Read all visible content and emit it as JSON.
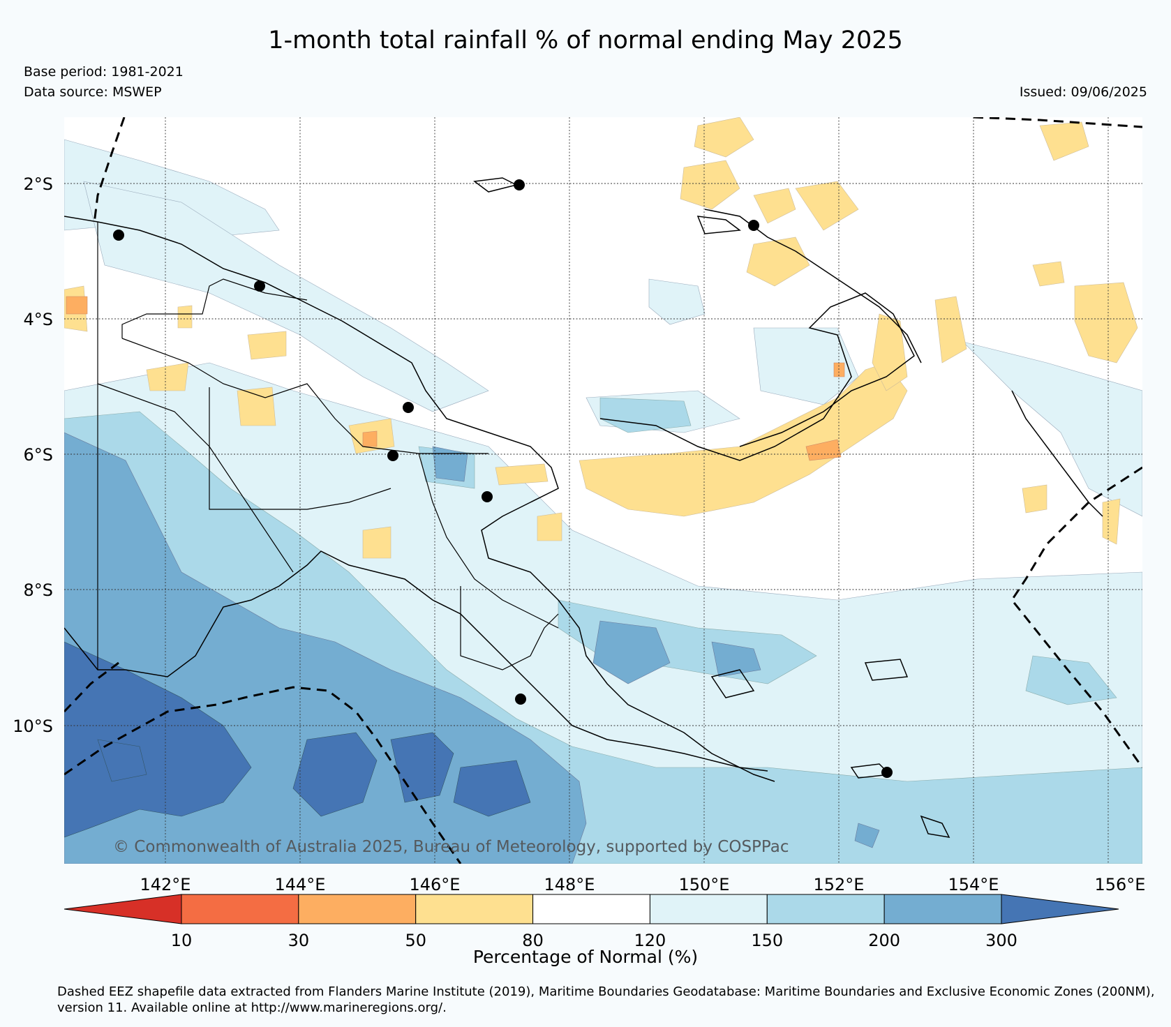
{
  "header": {
    "title": "1-month total rainfall % of normal ending May 2025",
    "base_period": "Base period: 1981-2021",
    "data_source": "Data source: MSWEP",
    "issued": "Issued: 09/06/2025"
  },
  "map": {
    "lat_labels": [
      "2°S",
      "4°S",
      "6°S",
      "8°S",
      "10°S"
    ],
    "lon_labels": [
      "142°E",
      "144°E",
      "146°E",
      "148°E",
      "150°E",
      "152°E",
      "154°E",
      "156°E"
    ],
    "stations": 9,
    "copyright": "© Commonwealth of Australia 2025, Bureau of Meteorology, supported by COSPPac"
  },
  "colorbar": {
    "title": "Percentage of Normal (%)",
    "ticks": [
      "10",
      "30",
      "50",
      "80",
      "120",
      "150",
      "200",
      "300"
    ],
    "colors": [
      "#d73027",
      "#f46d43",
      "#fdae61",
      "#fee090",
      "#ffffff",
      "#e0f3f8",
      "#abd9e9",
      "#74add1",
      "#4575b4"
    ]
  },
  "footnote": "Dashed EEZ shapefile data extracted from Flanders Marine Institute (2019), Maritime Boundaries Geodatabase: Maritime Boundaries and Exclusive Economic Zones (200NM), version 11. Available online at http://www.marineregions.org/."
}
